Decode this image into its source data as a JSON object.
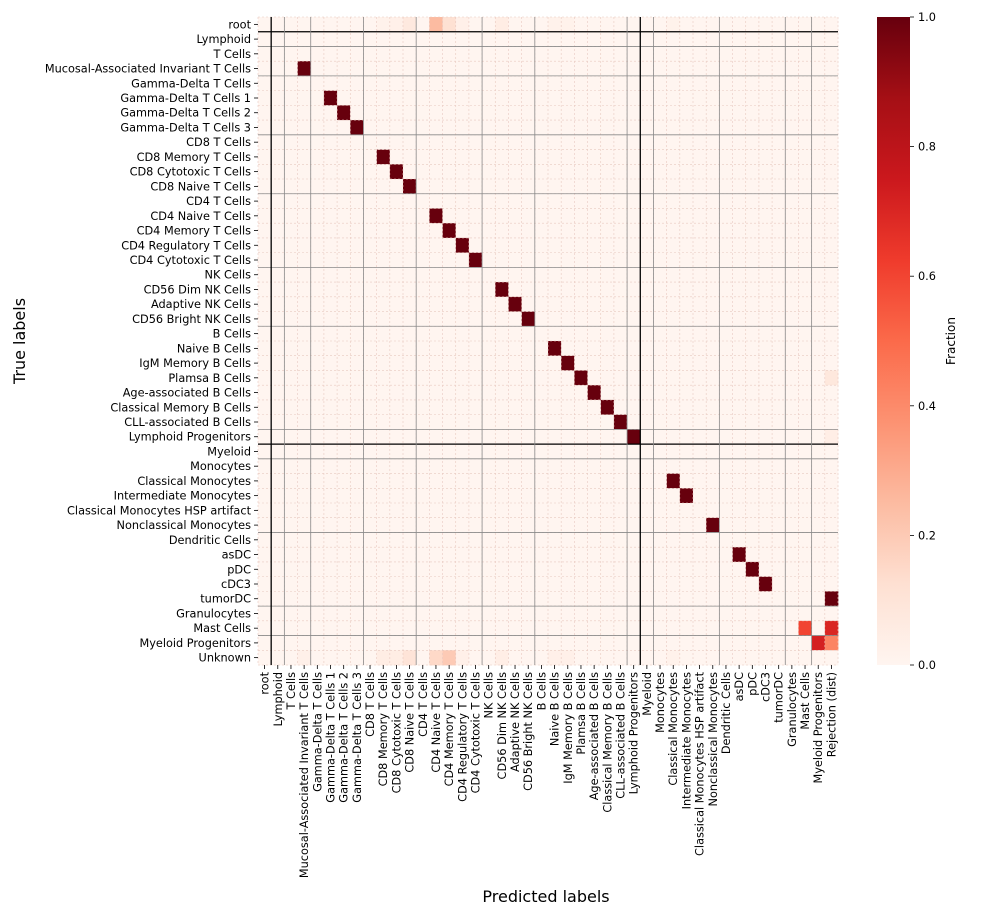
{
  "chart_data": {
    "type": "heatmap",
    "title": "",
    "xlabel": "Predicted labels",
    "ylabel": "True labels",
    "colorbar": {
      "label": "Fraction",
      "range": [
        0.0,
        1.0
      ],
      "ticks": [
        "0.0",
        "0.2",
        "0.4",
        "0.6",
        "0.8",
        "1.0"
      ],
      "colormap": "Reds",
      "colors": [
        "#fff5f0",
        "#fee0d2",
        "#fcbba1",
        "#fc9272",
        "#fb6a4a",
        "#ef3b2c",
        "#cb181d",
        "#a50f15",
        "#67000d"
      ]
    },
    "y_labels": [
      "root",
      "Lymphoid",
      "T Cells",
      "Mucosal-Associated Invariant T Cells",
      "Gamma-Delta T Cells",
      "Gamma-Delta T Cells 1",
      "Gamma-Delta T Cells 2",
      "Gamma-Delta T Cells 3",
      "CD8 T Cells",
      "CD8 Memory T Cells",
      "CD8 Cytotoxic T Cells",
      "CD8 Naive T Cells",
      "CD4 T Cells",
      "CD4 Naive T Cells",
      "CD4 Memory T Cells",
      "CD4 Regulatory T Cells",
      "CD4 Cytotoxic T Cells",
      "NK Cells",
      "CD56 Dim NK Cells",
      "Adaptive NK Cells",
      "CD56 Bright NK Cells",
      "B Cells",
      "Naive B Cells",
      "IgM Memory B Cells",
      "Plamsa B Cells",
      "Age-associated B Cells",
      "Classical Memory B Cells",
      "CLL-associated B Cells",
      "Lymphoid Progenitors",
      "Myeloid",
      "Monocytes",
      "Classical Monocytes",
      "Intermediate Monocytes",
      "Classical Monocytes HSP artifact",
      "Nonclassical Monocytes",
      "Dendritic Cells",
      "asDC",
      "pDC",
      "cDC3",
      "tumorDC",
      "Granulocytes",
      "Mast Cells",
      "Myeloid Progenitors",
      "Unknown"
    ],
    "x_labels": [
      "root",
      "Lymphoid",
      "T Cells",
      "Mucosal-Associated Invariant T Cells",
      "Gamma-Delta T Cells",
      "Gamma-Delta T Cells 1",
      "Gamma-Delta T Cells 2",
      "Gamma-Delta T Cells 3",
      "CD8 T Cells",
      "CD8 Memory T Cells",
      "CD8 Cytotoxic T Cells",
      "CD8 Naive T Cells",
      "CD4 T Cells",
      "CD4 Naive T Cells",
      "CD4 Memory T Cells",
      "CD4 Regulatory T Cells",
      "CD4 Cytotoxic T Cells",
      "NK Cells",
      "CD56 Dim NK Cells",
      "Adaptive NK Cells",
      "CD56 Bright NK Cells",
      "B Cells",
      "Naive B Cells",
      "IgM Memory B Cells",
      "Plamsa B Cells",
      "Age-associated B Cells",
      "Classical Memory B Cells",
      "CLL-associated B Cells",
      "Lymphoid Progenitors",
      "Myeloid",
      "Monocytes",
      "Classical Monocytes",
      "Intermediate Monocytes",
      "Classical Monocytes HSP artifact",
      "Nonclassical Monocytes",
      "Dendritic Cells",
      "asDC",
      "pDC",
      "cDC3",
      "tumorDC",
      "Granulocytes",
      "Mast Cells",
      "Myeloid Progenitors",
      "Rejection (dist)"
    ],
    "cells": [
      [
        0,
        9,
        0.02
      ],
      [
        0,
        10,
        0.03
      ],
      [
        0,
        11,
        0.07
      ],
      [
        0,
        13,
        0.25
      ],
      [
        0,
        14,
        0.12
      ],
      [
        0,
        15,
        0.03
      ],
      [
        0,
        18,
        0.05
      ],
      [
        0,
        22,
        0.02
      ],
      [
        0,
        23,
        0.02
      ],
      [
        0,
        31,
        0.02
      ],
      [
        3,
        3,
        1.0
      ],
      [
        5,
        5,
        1.0
      ],
      [
        6,
        6,
        1.0
      ],
      [
        7,
        7,
        1.0
      ],
      [
        9,
        9,
        1.0
      ],
      [
        10,
        10,
        1.0
      ],
      [
        11,
        11,
        1.0
      ],
      [
        13,
        13,
        1.0
      ],
      [
        14,
        14,
        1.0
      ],
      [
        15,
        15,
        1.0
      ],
      [
        16,
        16,
        1.0
      ],
      [
        18,
        18,
        1.0
      ],
      [
        19,
        19,
        1.0
      ],
      [
        20,
        20,
        1.0
      ],
      [
        22,
        22,
        1.0
      ],
      [
        23,
        23,
        1.0
      ],
      [
        24,
        24,
        1.0
      ],
      [
        24,
        43,
        0.08
      ],
      [
        25,
        25,
        1.0
      ],
      [
        26,
        26,
        1.0
      ],
      [
        27,
        27,
        1.0
      ],
      [
        28,
        28,
        1.0
      ],
      [
        28,
        43,
        0.04
      ],
      [
        31,
        31,
        1.0
      ],
      [
        32,
        32,
        1.0
      ],
      [
        34,
        34,
        1.0
      ],
      [
        36,
        36,
        1.0
      ],
      [
        37,
        37,
        1.0
      ],
      [
        38,
        38,
        1.0
      ],
      [
        39,
        43,
        1.0
      ],
      [
        41,
        41,
        0.6
      ],
      [
        41,
        43,
        0.7
      ],
      [
        42,
        42,
        0.72
      ],
      [
        42,
        43,
        0.42
      ],
      [
        43,
        3,
        0.03
      ],
      [
        43,
        9,
        0.05
      ],
      [
        43,
        10,
        0.05
      ],
      [
        43,
        11,
        0.1
      ],
      [
        43,
        13,
        0.15
      ],
      [
        43,
        14,
        0.2
      ],
      [
        43,
        15,
        0.03
      ],
      [
        43,
        18,
        0.04
      ],
      [
        43,
        22,
        0.03
      ],
      [
        43,
        23,
        0.03
      ],
      [
        43,
        31,
        0.02
      ]
    ],
    "background_value": 0.0,
    "grid": true,
    "group_separators_rows": [
      1,
      2,
      4,
      8,
      12,
      17,
      21,
      28,
      29,
      30,
      35,
      40,
      42
    ],
    "major_separators_rows": [
      1,
      29
    ],
    "group_separators_cols": [
      1,
      2,
      4,
      8,
      12,
      17,
      21,
      28,
      29,
      30,
      35,
      40,
      42
    ],
    "major_separators_cols": [
      1,
      29
    ]
  }
}
